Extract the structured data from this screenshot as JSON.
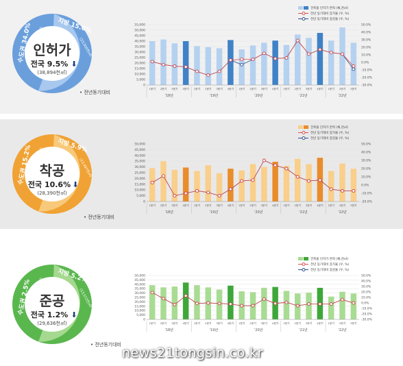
{
  "panels": [
    {
      "key": "permit",
      "title": "인허가",
      "national": "전국 9.5%",
      "national_value": "(38,894천㎡)",
      "capital": "수도권 34.0%",
      "capital_value": "(14,994천㎡)",
      "regional": "지방 15.6%",
      "regional_value": "(23,900천㎡)",
      "note": "• 전년동기대비",
      "ring_colors": [
        "#6a9fdc",
        "#a8c8ef"
      ],
      "chart_data": {
        "type": "bar",
        "legend": [
          "건축물 인허가 면적 (채,천㎡)",
          "전년 동기대비 증가율 (우, %)",
          "전년 동기대비 증감율 (우, %)"
        ],
        "categories": [
          "1분기",
          "2분기",
          "3분기",
          "4분기",
          "1분기",
          "2분기",
          "3분기",
          "4분기",
          "1분기",
          "2분기",
          "3분기",
          "4분기",
          "1분기",
          "2분기",
          "3분기",
          "4분기",
          "1분기",
          "2분기",
          "3분기"
        ],
        "year_labels": [
          "'18년",
          "'19년",
          "'20년",
          "'21년",
          "'22년"
        ],
        "values": [
          40000,
          41500,
          38000,
          40000,
          35500,
          34500,
          33500,
          41000,
          32500,
          36000,
          38500,
          40500,
          36500,
          46000,
          43000,
          47500,
          40500,
          52500,
          38500
        ],
        "growth_red": [
          1,
          -3,
          -5,
          -6,
          -12,
          -17,
          -12,
          3,
          4,
          4,
          12,
          5,
          6,
          29,
          11,
          17,
          13,
          11,
          -5
        ],
        "growth_blue": [
          1,
          -3,
          -5,
          -6,
          -12,
          -17,
          -12,
          3,
          -3,
          4,
          12,
          5,
          6,
          29,
          11,
          17,
          13,
          11,
          -9
        ],
        "bar_colors": [
          "#b5d1f0",
          "#3f82c7"
        ],
        "y_left": [
          0,
          55000,
          5000
        ],
        "y_right": [
          -30,
          50,
          10
        ]
      }
    },
    {
      "key": "start",
      "title": "착공",
      "national": "전국 10.6%",
      "national_value": "(28,390천㎡)",
      "capital": "수도권 15.2%",
      "capital_value": "(14,893천㎡)",
      "regional": "지방 5.9%",
      "regional_value": "(13,497천㎡)",
      "note": "• 전년동기대비",
      "ring_colors": [
        "#f0a234",
        "#f8c97a"
      ],
      "chart_data": {
        "type": "bar",
        "legend": [
          "건축물 인허가 면적 (채,천㎡)",
          "전년 동기대비 증가율 (우, %)",
          "전년 동기대비 증감율 (우, %)"
        ],
        "categories": [
          "1분기",
          "2분기",
          "3분기",
          "4분기",
          "1분기",
          "2분기",
          "3분기",
          "4분기",
          "1분기",
          "2분기",
          "3분기",
          "4분기",
          "1분기",
          "2분기",
          "3분기",
          "4분기",
          "1분기",
          "2분기",
          "3분기"
        ],
        "year_labels": [
          "'18년",
          "'19년",
          "'20년",
          "'21년",
          "'22년"
        ],
        "values": [
          29000,
          35000,
          27500,
          29500,
          26500,
          31500,
          24500,
          28500,
          27000,
          32500,
          30000,
          34500,
          31000,
          37000,
          32500,
          38000,
          26500,
          33000,
          28500
        ],
        "growth_red": [
          3,
          11,
          -13,
          -10,
          -7,
          -9,
          -13,
          -5,
          5,
          6,
          30,
          24,
          20,
          10,
          5,
          6,
          -5,
          -7,
          -7
        ],
        "growth_blue": [
          3,
          11,
          -13,
          -10,
          -7,
          -9,
          -13,
          -5,
          5,
          6,
          30,
          24,
          20,
          10,
          5,
          6,
          -5,
          -7,
          -7
        ],
        "bar_colors": [
          "#f9cf8b",
          "#e98c2b"
        ],
        "y_left": [
          0,
          50000,
          5000
        ],
        "y_right": [
          -20,
          50,
          10
        ]
      }
    },
    {
      "key": "complete",
      "title": "준공",
      "national": "전국 1.2%",
      "national_value": "(29,636천㎡)",
      "capital": "수도권 2.5%",
      "capital_value": "(16,064천㎡)",
      "regional": "지방 5.2%",
      "regional_value": "(13,572천㎡)",
      "note": "• 전년동기대비",
      "ring_colors": [
        "#5ab74e",
        "#a5d98f"
      ],
      "chart_data": {
        "type": "bar",
        "legend": [
          "건축물 인허가 면적 (채,천㎡)",
          "전년 동기대비 증가율 (우, %)",
          "전년 동기대비 증감율 (우, %)"
        ],
        "categories": [
          "1분기",
          "2분기",
          "3분기",
          "4분기",
          "1분기",
          "2분기",
          "3분기",
          "4분기",
          "1분기",
          "2분기",
          "3분기",
          "4분기",
          "1분기",
          "2분기",
          "3분기",
          "4분기",
          "1분기",
          "2분기",
          "3분기"
        ],
        "year_labels": [
          "'18년",
          "'19년",
          "'20년",
          "'21년",
          "'22년"
        ],
        "values": [
          39000,
          36500,
          37500,
          42000,
          39000,
          36500,
          34000,
          38500,
          32000,
          31000,
          36000,
          37000,
          32500,
          29500,
          30500,
          36000,
          26000,
          31500,
          29500
        ],
        "growth_red": [
          19,
          8,
          -3,
          13,
          -1,
          0,
          -1,
          -2,
          -5,
          -5,
          7,
          -1,
          1,
          -5,
          -2,
          -2,
          -2,
          6,
          0
        ],
        "growth_blue": [
          19,
          8,
          -3,
          13,
          -1,
          0,
          -1,
          -2,
          -5,
          -5,
          7,
          -1,
          1,
          -5,
          -2,
          -2,
          -2,
          6,
          0
        ],
        "bar_colors": [
          "#a9dc93",
          "#3ea73a"
        ],
        "y_left": [
          0,
          50000,
          5000
        ],
        "y_right": [
          -30,
          50,
          10
        ]
      }
    }
  ],
  "watermark": "news21tongsin.co.kr"
}
